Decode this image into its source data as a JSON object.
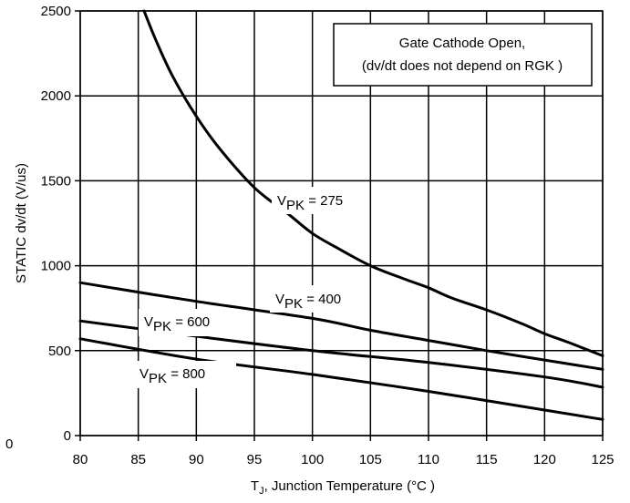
{
  "chart_data": {
    "type": "line",
    "xlabel_main": "T",
    "xlabel_sub": "J",
    "xlabel_rest": ", Junction Temperature (°C )",
    "ylabel": "STATIC dv/dt (V/us)",
    "xlim": [
      80,
      125
    ],
    "ylim": [
      0,
      2500
    ],
    "x_ticks": [
      "80",
      "85",
      "90",
      "95",
      "100",
      "105",
      "110",
      "115",
      "120",
      "125"
    ],
    "y_ticks": [
      "0",
      "500",
      "1000",
      "1500",
      "2000",
      "2500"
    ],
    "x_tick_values": [
      80,
      85,
      90,
      95,
      100,
      105,
      110,
      115,
      120,
      125
    ],
    "y_tick_values": [
      0,
      500,
      1000,
      1500,
      2000,
      2500
    ],
    "stray_tick": "0",
    "grid": true,
    "annotation": {
      "line1": "Gate Cathode Open,",
      "line2": "(dv/dt does not depend on RGK  )"
    },
    "series": [
      {
        "label_main": "V",
        "label_sub": "PK",
        "label_value": " = 275",
        "points": [
          [
            85.5,
            2500
          ],
          [
            86.5,
            2330
          ],
          [
            88,
            2110
          ],
          [
            90,
            1880
          ],
          [
            92,
            1690
          ],
          [
            95,
            1460
          ],
          [
            98,
            1300
          ],
          [
            100,
            1190
          ],
          [
            102,
            1110
          ],
          [
            105,
            1000
          ],
          [
            108,
            920
          ],
          [
            110,
            870
          ],
          [
            112,
            810
          ],
          [
            115,
            740
          ],
          [
            118,
            660
          ],
          [
            120,
            600
          ],
          [
            122,
            550
          ],
          [
            125,
            470
          ]
        ]
      },
      {
        "label_main": "V",
        "label_sub": "PK",
        "label_value": " = 400",
        "points": [
          [
            80,
            900
          ],
          [
            90,
            790
          ],
          [
            100,
            690
          ],
          [
            105,
            620
          ],
          [
            110,
            560
          ],
          [
            115,
            500
          ],
          [
            120,
            445
          ],
          [
            125,
            390
          ]
        ]
      },
      {
        "label_main": "V",
        "label_sub": "PK",
        "label_value": " = 600",
        "points": [
          [
            80,
            675
          ],
          [
            90,
            585
          ],
          [
            100,
            500
          ],
          [
            110,
            430
          ],
          [
            120,
            345
          ],
          [
            125,
            285
          ]
        ]
      },
      {
        "label_main": "V",
        "label_sub": "PK",
        "label_value": " = 800",
        "points": [
          [
            80,
            570
          ],
          [
            90,
            450
          ],
          [
            100,
            360
          ],
          [
            110,
            260
          ],
          [
            120,
            150
          ],
          [
            125,
            95
          ]
        ]
      }
    ]
  }
}
